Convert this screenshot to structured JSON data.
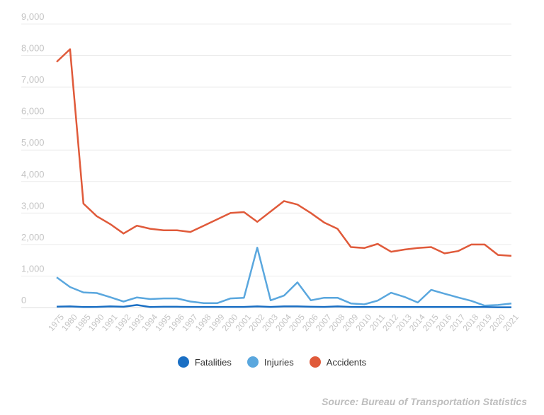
{
  "chart_data": {
    "type": "line",
    "x": [
      "1975",
      "1980",
      "1985",
      "1990",
      "1991",
      "1992",
      "1993",
      "1994",
      "1995",
      "1996",
      "1997",
      "1998",
      "1999",
      "2000",
      "2001",
      "2002",
      "2003",
      "2004",
      "2005",
      "2006",
      "2007",
      "2008",
      "2009",
      "2010",
      "2011",
      "2012",
      "2013",
      "2014",
      "2015",
      "2016",
      "2017",
      "2018",
      "2019",
      "2020",
      "2021"
    ],
    "y_ticks": [
      "0",
      "1,000",
      "2,000",
      "3,000",
      "4,000",
      "5,000",
      "6,000",
      "7,000",
      "8,000",
      "9,000"
    ],
    "ylim": [
      0,
      9000
    ],
    "grid": true,
    "legend_placement": "bottom",
    "series": [
      {
        "name": "Fatalities",
        "color": "#1a6fc4",
        "values": [
          30,
          35,
          15,
          20,
          35,
          25,
          80,
          15,
          25,
          25,
          20,
          20,
          20,
          20,
          20,
          35,
          20,
          35,
          35,
          25,
          20,
          35,
          20,
          15,
          20,
          20,
          15,
          15,
          15,
          15,
          15,
          15,
          15,
          10,
          10
        ]
      },
      {
        "name": "Injuries",
        "color": "#5aa7de",
        "values": [
          960,
          650,
          480,
          460,
          330,
          190,
          320,
          270,
          290,
          290,
          190,
          140,
          140,
          290,
          310,
          1900,
          230,
          380,
          800,
          230,
          310,
          310,
          130,
          100,
          220,
          470,
          340,
          160,
          560,
          440,
          320,
          210,
          60,
          80,
          130
        ]
      },
      {
        "name": "Accidents",
        "color": "#e05a3a",
        "values": [
          7800,
          8200,
          3300,
          2900,
          2650,
          2350,
          2600,
          2500,
          2450,
          2450,
          2400,
          2600,
          2800,
          3000,
          3030,
          2720,
          3050,
          3380,
          3270,
          3000,
          2700,
          2500,
          1920,
          1890,
          2020,
          1770,
          1840,
          1890,
          1920,
          1720,
          1790,
          2000,
          2000,
          1670,
          1640
        ]
      }
    ]
  },
  "source": "Source: Bureau of Transportation Statistics"
}
